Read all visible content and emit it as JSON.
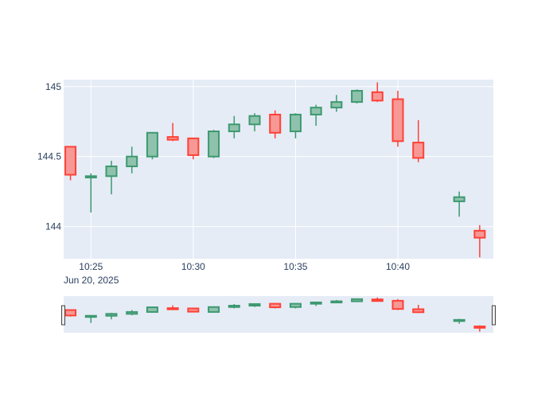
{
  "chart_data": {
    "type": "candlestick",
    "x_date_label": "Jun 20, 2025",
    "x_ticks": [
      "10:25",
      "10:30",
      "10:35",
      "10:40"
    ],
    "y_ticks": [
      144,
      144.5,
      145
    ],
    "ylim": [
      143.77,
      145.05
    ],
    "xlim": [
      "10:23:40",
      "10:44:40"
    ],
    "grid": true,
    "rangeslider": true,
    "colors": {
      "increasing": "#3d9970",
      "increasing_fill": "#8fc2ac",
      "decreasing": "#ff4136",
      "decreasing_fill": "#f79895",
      "plot_bg": "#e5ecf6",
      "grid": "#ffffff",
      "text": "#2a3f5f"
    },
    "candles": [
      {
        "time": "10:24",
        "open": 144.57,
        "high": 144.57,
        "low": 144.33,
        "close": 144.37
      },
      {
        "time": "10:25",
        "open": 144.35,
        "high": 144.38,
        "low": 144.1,
        "close": 144.36
      },
      {
        "time": "10:26",
        "open": 144.36,
        "high": 144.47,
        "low": 144.23,
        "close": 144.43
      },
      {
        "time": "10:27",
        "open": 144.43,
        "high": 144.57,
        "low": 144.38,
        "close": 144.5
      },
      {
        "time": "10:28",
        "open": 144.5,
        "high": 144.67,
        "low": 144.48,
        "close": 144.67
      },
      {
        "time": "10:29",
        "open": 144.64,
        "high": 144.74,
        "low": 144.61,
        "close": 144.62
      },
      {
        "time": "10:30",
        "open": 144.63,
        "high": 144.63,
        "low": 144.48,
        "close": 144.51
      },
      {
        "time": "10:31",
        "open": 144.5,
        "high": 144.69,
        "low": 144.49,
        "close": 144.68
      },
      {
        "time": "10:32",
        "open": 144.68,
        "high": 144.79,
        "low": 144.63,
        "close": 144.73
      },
      {
        "time": "10:33",
        "open": 144.73,
        "high": 144.81,
        "low": 144.68,
        "close": 144.79
      },
      {
        "time": "10:34",
        "open": 144.8,
        "high": 144.83,
        "low": 144.63,
        "close": 144.67
      },
      {
        "time": "10:35",
        "open": 144.68,
        "high": 144.81,
        "low": 144.63,
        "close": 144.8
      },
      {
        "time": "10:36",
        "open": 144.8,
        "high": 144.87,
        "low": 144.72,
        "close": 144.85
      },
      {
        "time": "10:37",
        "open": 144.85,
        "high": 144.94,
        "low": 144.82,
        "close": 144.89
      },
      {
        "time": "10:38",
        "open": 144.89,
        "high": 144.98,
        "low": 144.88,
        "close": 144.97
      },
      {
        "time": "10:39",
        "open": 144.96,
        "high": 145.03,
        "low": 144.89,
        "close": 144.9
      },
      {
        "time": "10:40",
        "open": 144.91,
        "high": 144.97,
        "low": 144.57,
        "close": 144.61
      },
      {
        "time": "10:41",
        "open": 144.6,
        "high": 144.76,
        "low": 144.46,
        "close": 144.49
      },
      {
        "time": "10:43",
        "open": 144.18,
        "high": 144.25,
        "low": 144.07,
        "close": 144.21
      },
      {
        "time": "10:44",
        "open": 143.97,
        "high": 144.01,
        "low": 143.78,
        "close": 143.92
      }
    ]
  }
}
